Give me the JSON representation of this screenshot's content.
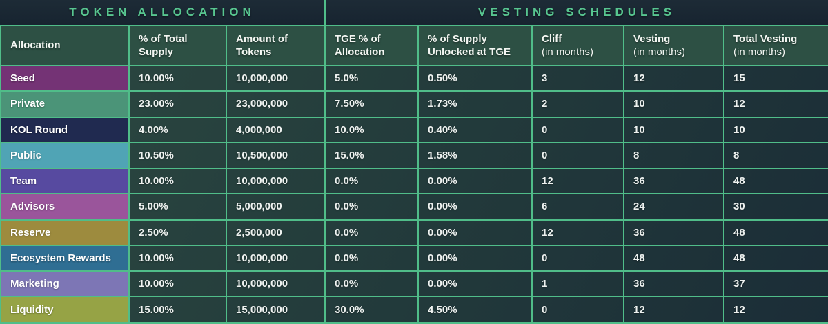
{
  "titles": {
    "left": "TOKEN ALLOCATION",
    "right": "VESTING SCHEDULES"
  },
  "colors": {
    "border": "#50bd89",
    "title_color": "#58c690",
    "header_bg": "#2d5044",
    "band_bg": "#1a2631"
  },
  "chart_data": {
    "type": "table",
    "section_titles": [
      {
        "label": "TOKEN ALLOCATION",
        "covers_columns": [
          "Allocation",
          "% of Total Supply",
          "Amount of Tokens"
        ]
      },
      {
        "label": "VESTING SCHEDULES",
        "covers_columns": [
          "TGE % of Allocation",
          "% of Supply Unlocked at TGE",
          "Cliff (in months)",
          "Vesting (in months)",
          "Total Vesting (in months)"
        ]
      }
    ],
    "columns": [
      {
        "lines": [
          "Allocation"
        ],
        "light_second_line": false
      },
      {
        "lines": [
          "% of Total",
          "Supply"
        ],
        "light_second_line": false
      },
      {
        "lines": [
          "Amount of",
          "Tokens"
        ],
        "light_second_line": false
      },
      {
        "lines": [
          "TGE % of",
          "Allocation"
        ],
        "light_second_line": false
      },
      {
        "lines": [
          "% of Supply",
          "Unlocked at TGE"
        ],
        "light_second_line": false
      },
      {
        "lines": [
          "Cliff",
          "(in months)"
        ],
        "light_second_line": true
      },
      {
        "lines": [
          "Vesting",
          "(in months)"
        ],
        "light_second_line": true
      },
      {
        "lines": [
          "Total Vesting",
          "(in months)"
        ],
        "light_second_line": true
      }
    ],
    "value_fields": [
      "pct-of-total-supply",
      "amount-of-tokens",
      "tge-pct-of-allocation",
      "pct-supply-unlocked-at-tge",
      "cliff-months",
      "vesting-months",
      "total-vesting-months"
    ],
    "rows": [
      {
        "name": "Seed",
        "color": "#743375",
        "values": [
          "10.00%",
          "10,000,000",
          "5.0%",
          "0.50%",
          "3",
          "12",
          "15"
        ]
      },
      {
        "name": "Private",
        "color": "#4b9478",
        "values": [
          "23.00%",
          "23,000,000",
          "7.50%",
          "1.73%",
          "2",
          "10",
          "12"
        ]
      },
      {
        "name": "KOL Round",
        "color": "#202a50",
        "values": [
          "4.00%",
          "4,000,000",
          "10.0%",
          "0.40%",
          "0",
          "10",
          "10"
        ]
      },
      {
        "name": "Public",
        "color": "#50a4b5",
        "values": [
          "10.50%",
          "10,500,000",
          "15.0%",
          "1.58%",
          "0",
          "8",
          "8"
        ]
      },
      {
        "name": "Team",
        "color": "#574aa0",
        "values": [
          "10.00%",
          "10,000,000",
          "0.0%",
          "0.00%",
          "12",
          "36",
          "48"
        ]
      },
      {
        "name": "Advisors",
        "color": "#9a559b",
        "values": [
          "5.00%",
          "5,000,000",
          "0.0%",
          "0.00%",
          "6",
          "24",
          "30"
        ]
      },
      {
        "name": "Reserve",
        "color": "#9d8b3e",
        "values": [
          "2.50%",
          "2,500,000",
          "0.0%",
          "0.00%",
          "12",
          "36",
          "48"
        ]
      },
      {
        "name": "Ecosystem Rewards",
        "color": "#2f6e93",
        "values": [
          "10.00%",
          "10,000,000",
          "0.0%",
          "0.00%",
          "0",
          "48",
          "48"
        ]
      },
      {
        "name": "Marketing",
        "color": "#7d76b5",
        "values": [
          "10.00%",
          "10,000,000",
          "0.0%",
          "0.00%",
          "1",
          "36",
          "37"
        ]
      },
      {
        "name": "Liquidity",
        "color": "#96a345",
        "values": [
          "15.00%",
          "15,000,000",
          "30.0%",
          "4.50%",
          "0",
          "12",
          "12"
        ]
      }
    ]
  }
}
